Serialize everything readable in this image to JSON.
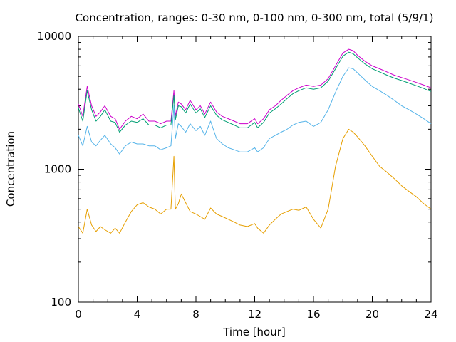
{
  "chart_data": {
    "type": "line",
    "title": "Concentration, ranges: 0-30 nm, 0-100 nm, 0-300 nm, total (5/9/1)",
    "xlabel": "Time [hour]",
    "ylabel": "Concentration",
    "xlim": [
      0,
      24
    ],
    "ylim": [
      100,
      10000
    ],
    "y_scale": "log",
    "x_ticks": [
      0,
      4,
      8,
      12,
      16,
      20,
      24
    ],
    "y_ticks": [
      100,
      1000,
      10000
    ],
    "x_tick_labels": [
      "0",
      "4",
      "8",
      "12",
      "16",
      "20",
      "24"
    ],
    "y_tick_labels": [
      "100",
      "1000",
      "10000"
    ],
    "grid": false,
    "legend": "none",
    "series": [
      {
        "color": "#cc00cc",
        "x": [
          0,
          0.3,
          0.6,
          0.9,
          1.2,
          1.5,
          1.8,
          2.2,
          2.5,
          2.8,
          3.2,
          3.6,
          4.0,
          4.4,
          4.8,
          5.2,
          5.6,
          6.0,
          6.3,
          6.5,
          6.6,
          6.8,
          7.0,
          7.3,
          7.6,
          8.0,
          8.3,
          8.6,
          9.0,
          9.4,
          9.8,
          10.2,
          10.6,
          11.0,
          11.5,
          12.0,
          12.2,
          12.6,
          13.0,
          13.4,
          13.8,
          14.2,
          14.6,
          15.0,
          15.5,
          16.0,
          16.5,
          17.0,
          17.5,
          18.0,
          18.4,
          18.7,
          19.0,
          19.5,
          20.0,
          20.5,
          21.0,
          21.5,
          22.0,
          22.5,
          23.0,
          23.5,
          24.0
        ],
        "values": [
          3100,
          2500,
          4200,
          3000,
          2500,
          2700,
          3000,
          2500,
          2400,
          2000,
          2300,
          2500,
          2400,
          2600,
          2300,
          2300,
          2200,
          2300,
          2300,
          3900,
          2500,
          3200,
          3100,
          2800,
          3300,
          2800,
          3000,
          2600,
          3200,
          2700,
          2500,
          2400,
          2300,
          2200,
          2200,
          2400,
          2200,
          2400,
          2800,
          3000,
          3300,
          3600,
          3900,
          4100,
          4300,
          4200,
          4300,
          4800,
          6000,
          7500,
          8000,
          7800,
          7200,
          6500,
          6000,
          5700,
          5400,
          5100,
          4900,
          4700,
          4500,
          4300,
          4100
        ]
      },
      {
        "color": "#009e73",
        "x": [
          0,
          0.3,
          0.6,
          0.9,
          1.2,
          1.5,
          1.8,
          2.2,
          2.5,
          2.8,
          3.2,
          3.6,
          4.0,
          4.4,
          4.8,
          5.2,
          5.6,
          6.0,
          6.3,
          6.5,
          6.6,
          6.8,
          7.0,
          7.3,
          7.6,
          8.0,
          8.3,
          8.6,
          9.0,
          9.4,
          9.8,
          10.2,
          10.6,
          11.0,
          11.5,
          12.0,
          12.2,
          12.6,
          13.0,
          13.4,
          13.8,
          14.2,
          14.6,
          15.0,
          15.5,
          16.0,
          16.5,
          17.0,
          17.5,
          18.0,
          18.4,
          18.7,
          19.0,
          19.5,
          20.0,
          20.5,
          21.0,
          21.5,
          22.0,
          22.5,
          23.0,
          23.5,
          24.0
        ],
        "values": [
          2900,
          2300,
          3900,
          2800,
          2300,
          2500,
          2800,
          2300,
          2250,
          1900,
          2150,
          2300,
          2250,
          2400,
          2150,
          2150,
          2050,
          2150,
          2150,
          3600,
          2350,
          3000,
          2950,
          2650,
          3100,
          2650,
          2850,
          2450,
          3000,
          2550,
          2350,
          2250,
          2150,
          2050,
          2050,
          2250,
          2050,
          2250,
          2650,
          2850,
          3100,
          3400,
          3700,
          3900,
          4100,
          4000,
          4100,
          4600,
          5700,
          7100,
          7600,
          7400,
          6900,
          6200,
          5700,
          5400,
          5100,
          4850,
          4650,
          4450,
          4250,
          4050,
          3850
        ]
      },
      {
        "color": "#56b4e9",
        "x": [
          0,
          0.3,
          0.6,
          0.9,
          1.2,
          1.5,
          1.8,
          2.2,
          2.5,
          2.8,
          3.2,
          3.6,
          4.0,
          4.4,
          4.8,
          5.2,
          5.6,
          6.0,
          6.3,
          6.5,
          6.6,
          6.8,
          7.0,
          7.3,
          7.6,
          8.0,
          8.3,
          8.6,
          9.0,
          9.4,
          9.8,
          10.2,
          10.6,
          11.0,
          11.5,
          12.0,
          12.2,
          12.6,
          13.0,
          13.4,
          13.8,
          14.2,
          14.6,
          15.0,
          15.5,
          16.0,
          16.5,
          17.0,
          17.5,
          18.0,
          18.4,
          18.7,
          19.0,
          19.5,
          20.0,
          20.5,
          21.0,
          21.5,
          22.0,
          22.5,
          23.0,
          23.5,
          24.0
        ],
        "values": [
          1800,
          1500,
          2100,
          1600,
          1500,
          1650,
          1800,
          1550,
          1450,
          1300,
          1500,
          1600,
          1550,
          1550,
          1500,
          1500,
          1400,
          1450,
          1500,
          3000,
          1700,
          2200,
          2100,
          1900,
          2200,
          1950,
          2100,
          1800,
          2300,
          1700,
          1550,
          1450,
          1400,
          1350,
          1350,
          1450,
          1350,
          1450,
          1700,
          1800,
          1900,
          2000,
          2150,
          2250,
          2300,
          2100,
          2250,
          2800,
          3800,
          5000,
          5800,
          5700,
          5300,
          4700,
          4200,
          3900,
          3600,
          3300,
          3000,
          2800,
          2600,
          2400,
          2200
        ]
      },
      {
        "color": "#e69f00",
        "x": [
          0,
          0.3,
          0.6,
          0.9,
          1.2,
          1.5,
          1.8,
          2.2,
          2.5,
          2.8,
          3.2,
          3.6,
          4.0,
          4.4,
          4.8,
          5.2,
          5.6,
          6.0,
          6.3,
          6.5,
          6.6,
          6.8,
          7.0,
          7.3,
          7.6,
          8.0,
          8.3,
          8.6,
          9.0,
          9.4,
          9.8,
          10.2,
          10.6,
          11.0,
          11.5,
          12.0,
          12.2,
          12.6,
          13.0,
          13.4,
          13.8,
          14.2,
          14.6,
          15.0,
          15.5,
          16.0,
          16.5,
          17.0,
          17.5,
          18.0,
          18.4,
          18.7,
          19.0,
          19.5,
          20.0,
          20.5,
          21.0,
          21.5,
          22.0,
          22.5,
          23.0,
          23.5,
          24.0
        ],
        "values": [
          370,
          330,
          500,
          380,
          340,
          370,
          350,
          330,
          360,
          330,
          400,
          480,
          540,
          560,
          520,
          500,
          460,
          500,
          500,
          1250,
          500,
          550,
          650,
          560,
          480,
          460,
          440,
          420,
          510,
          460,
          440,
          420,
          400,
          380,
          370,
          390,
          360,
          330,
          380,
          420,
          460,
          480,
          500,
          490,
          520,
          420,
          360,
          500,
          1050,
          1700,
          2000,
          1900,
          1750,
          1500,
          1250,
          1050,
          950,
          850,
          750,
          680,
          620,
          550,
          500
        ]
      }
    ]
  }
}
